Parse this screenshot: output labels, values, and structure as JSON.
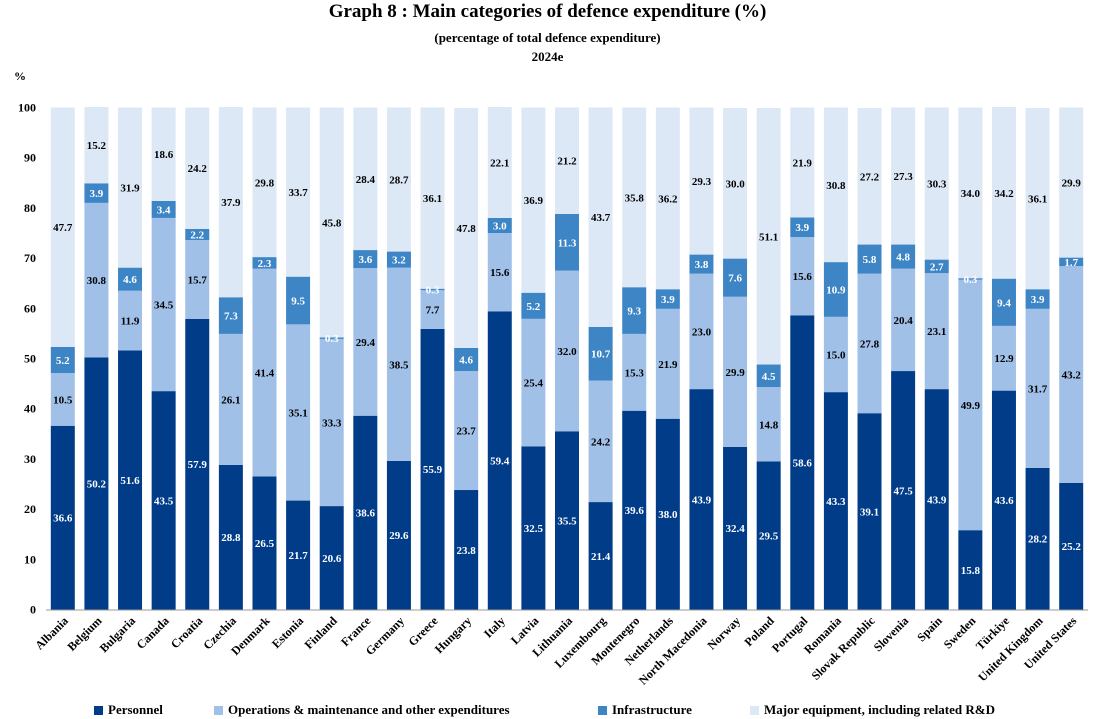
{
  "chart_data": {
    "type": "bar",
    "stacked": true,
    "title": "Graph 8 : Main categories of defence expenditure (%)",
    "subtitle": "(percentage of total defence expenditure)",
    "year_label": "2024e",
    "ylabel": "%",
    "ylim": [
      0,
      100
    ],
    "yticks": [
      0,
      10,
      20,
      30,
      40,
      50,
      60,
      70,
      80,
      90,
      100
    ],
    "categories": [
      "Albania",
      "Belgium",
      "Bulgaria",
      "Canada",
      "Croatia",
      "Czechia",
      "Denmark",
      "Estonia",
      "Finland",
      "France",
      "Germany",
      "Greece",
      "Hungary",
      "Italy",
      "Latvia",
      "Lithuania",
      "Luxembourg",
      "Montenegro",
      "Netherlands",
      "North Macedonia",
      "Norway",
      "Poland",
      "Portugal",
      "Romania",
      "Slovak Republic",
      "Slovenia",
      "Spain",
      "Sweden",
      "Türkiye",
      "United Kingdom",
      "United States"
    ],
    "series": [
      {
        "name": "Personnel",
        "color": "#003c88",
        "label_color": "#ffffff",
        "values": [
          36.6,
          50.2,
          51.6,
          43.5,
          57.9,
          28.8,
          26.5,
          21.7,
          20.6,
          38.6,
          29.6,
          55.9,
          23.8,
          59.4,
          32.5,
          35.5,
          21.4,
          39.6,
          38.0,
          43.9,
          32.4,
          29.5,
          58.6,
          43.3,
          39.1,
          47.5,
          43.9,
          15.8,
          43.6,
          28.2,
          25.2
        ],
        "labels": [
          "36.6",
          "50.2",
          "51.6",
          "43.5",
          "57.9",
          "28.8",
          "26.5",
          "21.7",
          "20.6",
          "38.6",
          "29.6",
          "55.9",
          "23.8",
          "59.4",
          "32.5",
          "35.5",
          "21.4",
          "39.6",
          "38.0",
          "43.9",
          "32.4",
          "29.5",
          "58.6",
          "43.3",
          "39.1",
          "47.5",
          "43.9",
          "15.8",
          "43.6",
          "28.2",
          "25.2"
        ]
      },
      {
        "name": "Operations & maintenance and other expenditures",
        "color": "#a0c0e8",
        "label_color": "#000000",
        "values": [
          10.5,
          30.8,
          11.9,
          34.5,
          15.7,
          26.1,
          41.4,
          35.1,
          33.3,
          29.4,
          38.5,
          7.7,
          23.7,
          15.6,
          25.4,
          32.0,
          24.2,
          15.3,
          21.9,
          23.0,
          29.9,
          14.8,
          15.6,
          15.0,
          27.8,
          20.4,
          23.1,
          49.9,
          12.9,
          31.7,
          43.2
        ],
        "labels": [
          "10.5",
          "30.8",
          "11.9",
          "34.5",
          "15.7",
          "26.1",
          "41.4",
          "35.1",
          "33.3",
          "29.4",
          "38.5",
          "7.7",
          "23.7",
          "15.6",
          "25.4",
          "32.0",
          "24.2",
          "15.3",
          "21.9",
          "23.0",
          "29.9",
          "14.8",
          "15.6",
          "15.0",
          "27.8",
          "20.4",
          "23.1",
          "49.9",
          "12.9",
          "31.7",
          "43.2"
        ]
      },
      {
        "name": "Infrastructure",
        "color": "#3e85c6",
        "label_color": "#ffffff",
        "values": [
          5.2,
          3.9,
          4.6,
          3.4,
          2.2,
          7.3,
          2.3,
          9.5,
          0.3,
          3.6,
          3.2,
          0.3,
          4.6,
          3.0,
          5.2,
          11.3,
          10.7,
          9.3,
          3.9,
          3.8,
          7.6,
          4.5,
          3.9,
          10.9,
          5.8,
          4.8,
          2.7,
          0.3,
          9.4,
          3.9,
          1.7
        ],
        "labels": [
          "5.2",
          "3.9",
          "4.6",
          "3.4",
          "2.2",
          "7.3",
          "2.3",
          "9.5",
          "0.3",
          "3.6",
          "3.2",
          "0.3",
          "4.6",
          "3.0",
          "5.2",
          "11.3",
          "10.7",
          "9.3",
          "3.9",
          "3.8",
          "7.6",
          "4.5",
          "3.9",
          "10.9",
          "5.8",
          "4.8",
          "2.7",
          "0.3",
          "9.4",
          "3.9",
          "1.7"
        ]
      },
      {
        "name": "Major equipment, including related R&D",
        "color": "#dde8f6",
        "label_color": "#000000",
        "values": [
          47.7,
          15.2,
          31.9,
          18.6,
          24.2,
          37.9,
          29.8,
          33.7,
          45.8,
          28.4,
          28.7,
          36.1,
          47.8,
          22.1,
          36.9,
          21.2,
          43.7,
          35.8,
          36.2,
          29.3,
          30.0,
          51.1,
          21.9,
          30.8,
          27.2,
          27.3,
          30.3,
          34.0,
          34.2,
          36.1,
          29.9
        ],
        "labels": [
          "47.7",
          "15.2",
          "31.9",
          "18.6",
          "24.2",
          "37.9",
          "29.8",
          "33.7",
          "45.8",
          "28.4",
          "28.7",
          "36.1",
          "47.8",
          "22.1",
          "36.9",
          "21.2",
          "43.7",
          "35.8",
          "36.2",
          "29.3",
          "30.0",
          "51.1",
          "21.9",
          "30.8",
          "27.2",
          "27.3",
          "30.3",
          "34.0",
          "34.2",
          "36.1",
          "29.9"
        ]
      }
    ],
    "grid": false,
    "legend_position": "bottom"
  }
}
